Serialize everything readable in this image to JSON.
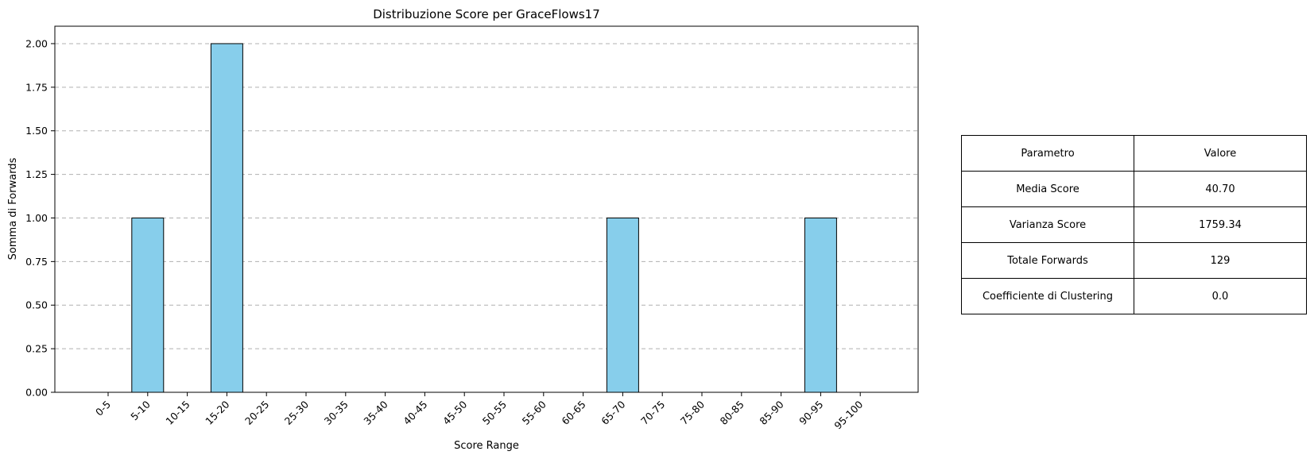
{
  "chart_data": {
    "type": "bar",
    "title": "Distribuzione Score per GraceFlows17",
    "xlabel": "Score Range",
    "ylabel": "Somma di Forwards",
    "categories": [
      "0-5",
      "5-10",
      "10-15",
      "15-20",
      "20-25",
      "25-30",
      "30-35",
      "35-40",
      "40-45",
      "45-50",
      "50-55",
      "55-60",
      "60-65",
      "65-70",
      "70-75",
      "75-80",
      "80-85",
      "85-90",
      "90-95",
      "95-100"
    ],
    "values": [
      0,
      1,
      0,
      2,
      0,
      0,
      0,
      0,
      0,
      0,
      0,
      0,
      0,
      1,
      0,
      0,
      0,
      0,
      1,
      0
    ],
    "ylim": [
      0,
      2.1
    ],
    "yticks": [
      "0.00",
      "0.25",
      "0.50",
      "0.75",
      "1.00",
      "1.25",
      "1.50",
      "1.75",
      "2.00"
    ],
    "ytick_values": [
      0,
      0.25,
      0.5,
      0.75,
      1.0,
      1.25,
      1.5,
      1.75,
      2.0
    ],
    "grid": "y-dashed",
    "bar_color": "#87CEEB",
    "edge_color": "#000000"
  },
  "table": {
    "header": [
      "Parametro",
      "Valore"
    ],
    "rows": [
      [
        "Media Score",
        "40.70"
      ],
      [
        "Varianza Score",
        "1759.34"
      ],
      [
        "Totale Forwards",
        "129"
      ],
      [
        "Coefficiente di Clustering",
        "0.0"
      ]
    ]
  }
}
